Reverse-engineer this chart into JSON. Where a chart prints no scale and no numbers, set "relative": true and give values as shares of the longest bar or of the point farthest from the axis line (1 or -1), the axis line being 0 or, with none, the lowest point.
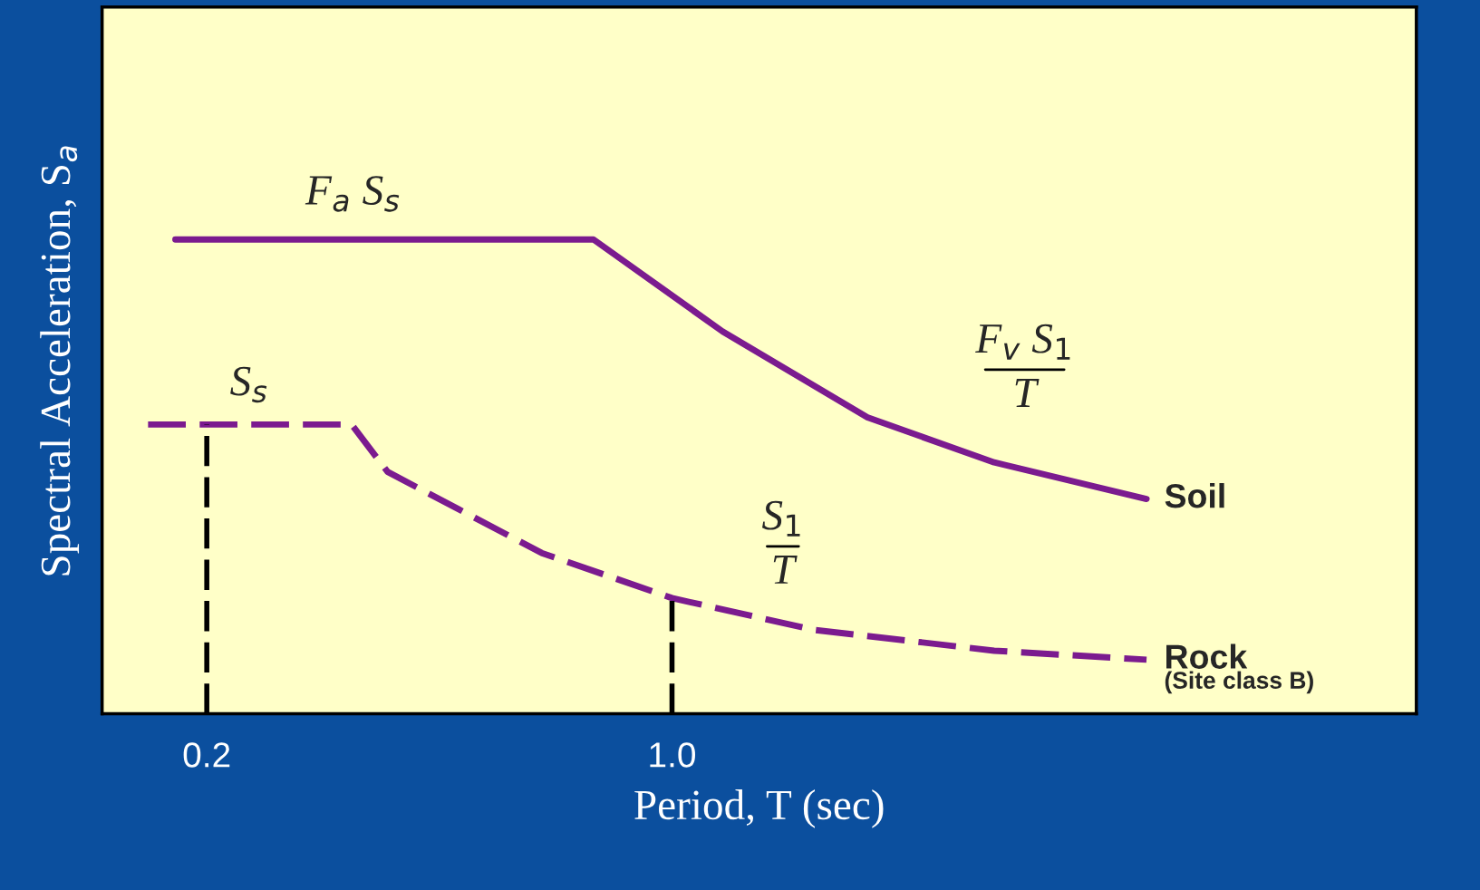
{
  "chart_data": {
    "type": "line",
    "relative": true,
    "xlabel": "Period, T (sec)",
    "ylabel": "Spectral Acceleration, S$_{a}$",
    "xlim": [
      0.02,
      2.28
    ],
    "xticks": [
      {
        "value": 0.2,
        "label": "0.2"
      },
      {
        "value": 1.0,
        "label": "1.0"
      }
    ],
    "tick_labels": "x",
    "grid": false,
    "legend": false,
    "series": [
      {
        "name": "Soil",
        "color": "#7b1b8f",
        "line_style": "solid",
        "x": [
          0.146,
          0.865,
          1.087,
          1.336,
          1.554,
          1.816
        ],
        "values": [
          1,
          1,
          0.806,
          0.625,
          0.53,
          0.453
        ]
      },
      {
        "name": "Rock",
        "color": "#7b1b8f",
        "line_style": "dashed",
        "x": [
          0.099,
          0.449,
          0.511,
          0.776,
          1.0,
          1.243,
          1.554,
          1.816
        ],
        "values": [
          0.61,
          0.61,
          0.51,
          0.339,
          0.244,
          0.177,
          0.133,
          0.114
        ]
      }
    ],
    "ref_lines": [
      {
        "axis": "x",
        "value": 0.2,
        "color": "#000000",
        "line_style": "dashed"
      },
      {
        "axis": "x",
        "value": 1.0,
        "color": "#000000",
        "line_style": "dashed"
      }
    ],
    "annotations": [
      "F$_{a}$ S$_{s}$",
      "S$_{s}$",
      "F$_{v}$ S$_{1}$\nT",
      "S$_{1}$\nT",
      "(Site class B)"
    ]
  }
}
